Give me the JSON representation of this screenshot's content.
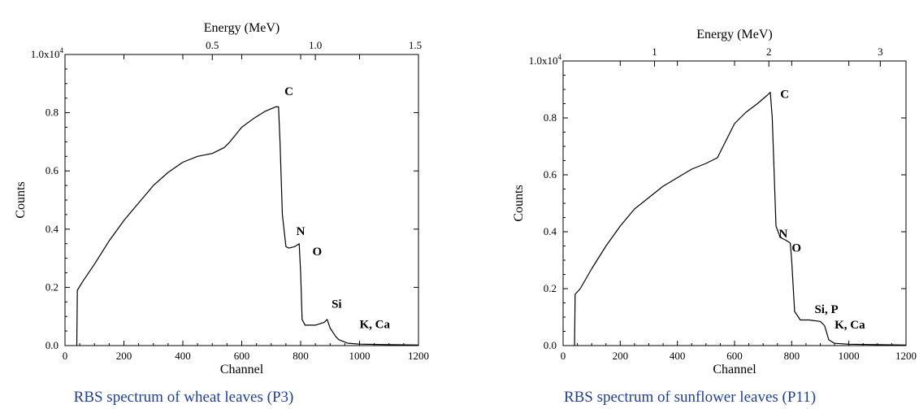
{
  "colors": {
    "line": "#000000",
    "caption": "#1f3f9f"
  },
  "chart_data": [
    {
      "type": "line",
      "caption": "RBS spectrum of wheat leaves (P3)",
      "xlabel": "Channel",
      "ylabel": "Counts",
      "top_xlabel": "Energy (MeV)",
      "xlim": [
        0,
        1200
      ],
      "ylim": [
        0,
        10000
      ],
      "x_ticks": [
        0,
        200,
        400,
        600,
        800,
        1000,
        1200
      ],
      "x_tick_labels": [
        "0",
        "200",
        "400",
        "600",
        "800",
        "1000",
        "1200"
      ],
      "y_ticks": [
        0,
        2000,
        4000,
        6000,
        8000,
        10000
      ],
      "y_tick_labels": [
        "0.0",
        "0.2",
        "0.4",
        "0.6",
        "0.8",
        "1.0x10"
      ],
      "y_tick_exponent": "4",
      "top_ticks_channel": [
        500,
        850,
        1210
      ],
      "top_tick_labels": [
        "0.5",
        "1.0",
        "1.5"
      ],
      "x": [
        40,
        42,
        60,
        100,
        150,
        200,
        250,
        300,
        350,
        400,
        450,
        500,
        540,
        560,
        600,
        640,
        680,
        715,
        725,
        730,
        738,
        750,
        760,
        780,
        795,
        800,
        805,
        815,
        850,
        880,
        890,
        900,
        910,
        920,
        930,
        960,
        1000,
        1100,
        1200
      ],
      "y": [
        0,
        1900,
        2200,
        2800,
        3600,
        4300,
        4900,
        5500,
        5950,
        6300,
        6500,
        6600,
        6800,
        7000,
        7500,
        7800,
        8050,
        8200,
        8200,
        7000,
        4500,
        3400,
        3350,
        3400,
        3500,
        2500,
        900,
        700,
        700,
        800,
        900,
        600,
        450,
        300,
        200,
        80,
        50,
        30,
        20
      ],
      "peaks": [
        {
          "label": "C",
          "x": 745,
          "y": 8600
        },
        {
          "label": "N",
          "x": 785,
          "y": 3800
        },
        {
          "label": "O",
          "x": 840,
          "y": 3100
        },
        {
          "label": "Si",
          "x": 905,
          "y": 1300
        },
        {
          "label": "K, Ca",
          "x": 1000,
          "y": 600
        }
      ]
    },
    {
      "type": "line",
      "caption": "RBS spectrum of sunflower leaves (P11)",
      "xlabel": "Channel",
      "ylabel": "Counts",
      "top_xlabel": "Energy (MeV)",
      "xlim": [
        0,
        1200
      ],
      "ylim": [
        0,
        10000
      ],
      "x_ticks": [
        0,
        200,
        400,
        600,
        800,
        1000,
        1200
      ],
      "x_tick_labels": [
        "0",
        "200",
        "400",
        "600",
        "800",
        "1000",
        "1200"
      ],
      "y_ticks": [
        0,
        2000,
        4000,
        6000,
        8000,
        10000
      ],
      "y_tick_labels": [
        "0.0",
        "0.2",
        "0.4",
        "0.6",
        "0.8",
        "1.0x10"
      ],
      "y_tick_exponent": "4",
      "top_ticks_channel": [
        320,
        720,
        1110
      ],
      "top_tick_labels": [
        "1",
        "2",
        "3"
      ],
      "x": [
        40,
        42,
        60,
        100,
        150,
        200,
        250,
        300,
        350,
        400,
        450,
        500,
        540,
        560,
        600,
        640,
        680,
        715,
        725,
        732,
        745,
        760,
        780,
        795,
        800,
        810,
        830,
        860,
        900,
        915,
        930,
        950,
        1000,
        1100,
        1200
      ],
      "y": [
        0,
        1800,
        2000,
        2700,
        3500,
        4200,
        4800,
        5200,
        5600,
        5900,
        6200,
        6400,
        6600,
        7000,
        7800,
        8200,
        8500,
        8800,
        8900,
        8000,
        4200,
        3800,
        3700,
        3600,
        3000,
        1200,
        900,
        900,
        850,
        700,
        200,
        80,
        50,
        30,
        20
      ],
      "peaks": [
        {
          "label": "C",
          "x": 760,
          "y": 8700
        },
        {
          "label": "N",
          "x": 755,
          "y": 3800
        },
        {
          "label": "O",
          "x": 800,
          "y": 3300
        },
        {
          "label": "Si, P",
          "x": 880,
          "y": 1150
        },
        {
          "label": "K, Ca",
          "x": 950,
          "y": 600
        }
      ]
    }
  ]
}
